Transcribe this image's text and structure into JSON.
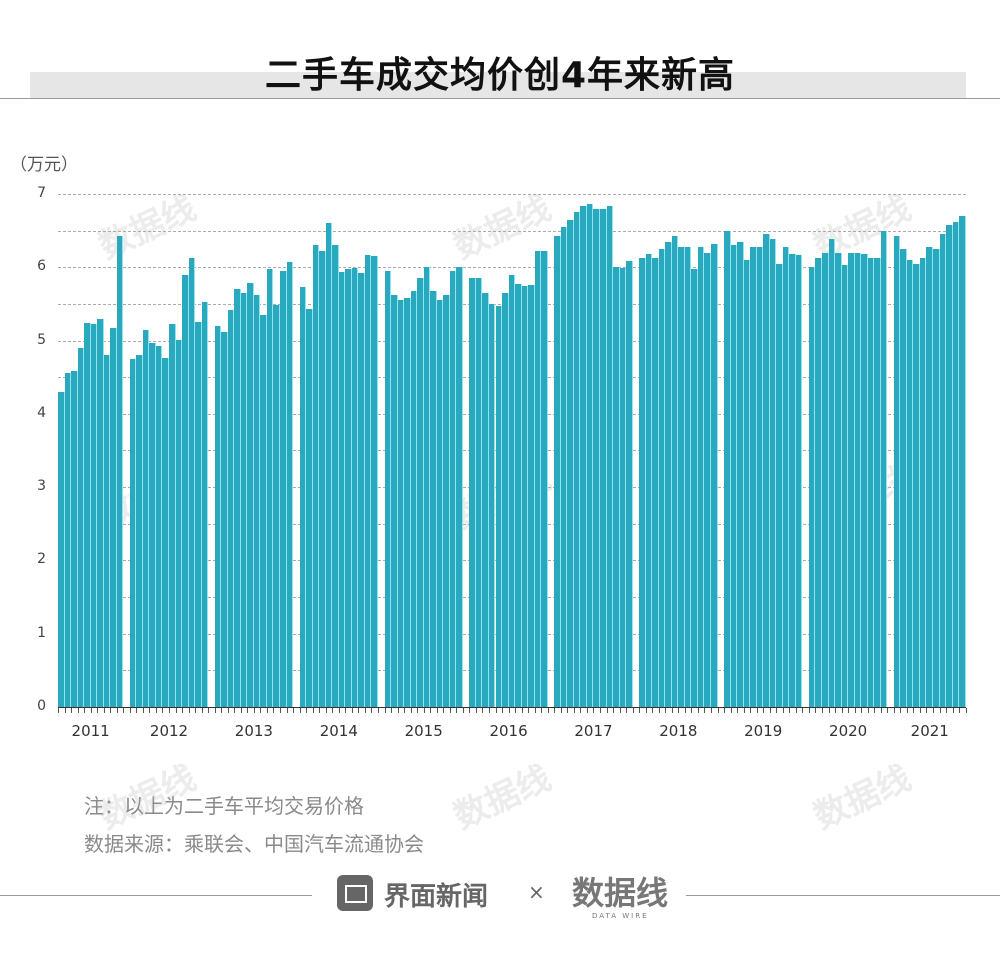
{
  "title": "二手车成交均价创4年来新高",
  "unit": "（万元）",
  "y_ticks": [
    "0",
    "1",
    "2",
    "3",
    "4",
    "5",
    "6",
    "7"
  ],
  "years": [
    "2011",
    "2012",
    "2013",
    "2014",
    "2015",
    "2016",
    "2017",
    "2018",
    "2019",
    "2020",
    "2021"
  ],
  "note": "注：以上为二手车平均交易价格",
  "source": "数据来源：乘联会、中国汽车流通协会",
  "footer": {
    "brand1": "界面新闻",
    "times": "×",
    "brand2": "数据线",
    "brand2_sub": "DATA WIRE"
  },
  "watermark": "数据线",
  "colors": {
    "bar": "#2aa8bd",
    "separator": "#8ee6f0",
    "title_band": "#e6e6e6"
  },
  "chart_data": {
    "type": "bar",
    "title": "二手车成交均价创4年来新高",
    "xlabel": "",
    "ylabel": "万元",
    "ylim": [
      0,
      7
    ],
    "grid": "dashed horizontal every 0.5",
    "series": [
      {
        "year": "2011",
        "values": [
          4.3,
          4.56,
          4.58,
          4.9,
          5.24,
          5.22,
          5.3,
          4.8,
          5.17,
          6.43
        ]
      },
      {
        "year": "2012",
        "values": [
          4.75,
          4.8,
          5.15,
          4.97,
          4.93,
          4.76,
          5.23,
          5.01,
          5.9,
          6.12,
          5.25,
          5.52
        ]
      },
      {
        "year": "2013",
        "values": [
          5.2,
          5.12,
          5.42,
          5.7,
          5.65,
          5.78,
          5.62,
          5.35,
          5.97,
          5.48,
          5.95,
          6.07
        ]
      },
      {
        "year": "2014",
        "values": [
          5.73,
          5.43,
          6.3,
          6.22,
          6.6,
          6.3,
          5.93,
          5.97,
          5.99,
          5.92,
          6.16,
          6.15
        ]
      },
      {
        "year": "2015",
        "values": [
          5.95,
          5.62,
          5.55,
          5.58,
          5.68,
          5.85,
          6.0,
          5.68,
          5.55,
          5.62,
          5.95,
          6.0
        ]
      },
      {
        "year": "2016",
        "values": [
          5.85,
          5.85,
          5.65,
          5.5,
          5.47,
          5.65,
          5.9,
          5.77,
          5.75,
          5.76,
          6.22,
          6.22
        ]
      },
      {
        "year": "2017",
        "values": [
          6.42,
          6.55,
          6.65,
          6.75,
          6.83,
          6.86,
          6.8,
          6.8,
          6.84,
          6.0,
          5.99,
          6.08
        ]
      },
      {
        "year": "2018",
        "values": [
          6.12,
          6.18,
          6.13,
          6.25,
          6.35,
          6.42,
          6.27,
          6.27,
          5.97,
          6.27,
          6.2,
          6.32
        ]
      },
      {
        "year": "2019",
        "values": [
          6.5,
          6.3,
          6.35,
          6.1,
          6.28,
          6.28,
          6.45,
          6.38,
          6.05,
          6.28,
          6.18,
          6.17
        ]
      },
      {
        "year": "2020",
        "values": [
          6.0,
          6.13,
          6.2,
          6.38,
          6.2,
          6.03,
          6.19,
          6.2,
          6.18,
          6.12,
          6.13,
          6.5
        ]
      },
      {
        "year": "2021",
        "values": [
          6.42,
          6.25,
          6.1,
          6.05,
          6.12,
          6.27,
          6.25,
          6.45,
          6.58,
          6.62,
          6.7
        ]
      }
    ]
  }
}
